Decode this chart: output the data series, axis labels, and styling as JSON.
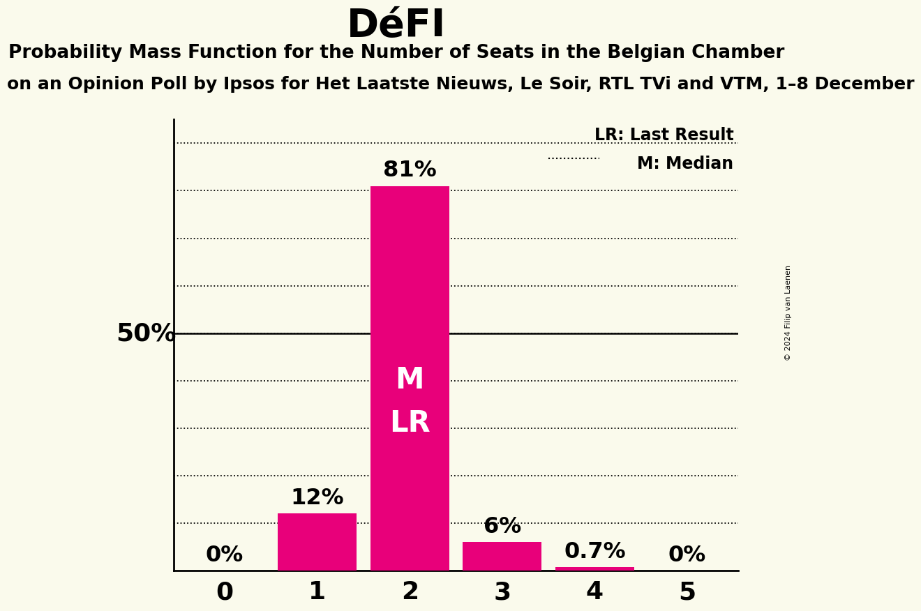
{
  "title": "DéFI",
  "subtitle1": "Probability Mass Function for the Number of Seats in the Belgian Chamber",
  "subtitle2": "on an Opinion Poll by Ipsos for Het Laatste Nieuws, Le Soir, RTL TVi and VTM, 1–8 December",
  "copyright": "© 2024 Filip van Laenen",
  "categories": [
    0,
    1,
    2,
    3,
    4,
    5
  ],
  "values": [
    0.0,
    0.12,
    0.81,
    0.06,
    0.007,
    0.0
  ],
  "bar_labels": [
    "0%",
    "12%",
    "81%",
    "6%",
    "0.7%",
    "0%"
  ],
  "bar_color": "#e8007a",
  "background_color": "#fafaec",
  "bar_label_inside": "M\nLR",
  "legend_lr": "LR: Last Result",
  "legend_m": "M: Median",
  "ylabel_50": "50%",
  "ylim": [
    0,
    0.95
  ],
  "title_fontsize": 40,
  "subtitle1_fontsize": 19,
  "subtitle2_fontsize": 18,
  "bar_label_fontsize": 23,
  "axis_tick_fontsize": 26,
  "inside_label_fontsize": 30,
  "legend_fontsize": 17,
  "ylabel50_fontsize": 26,
  "copyright_fontsize": 8
}
